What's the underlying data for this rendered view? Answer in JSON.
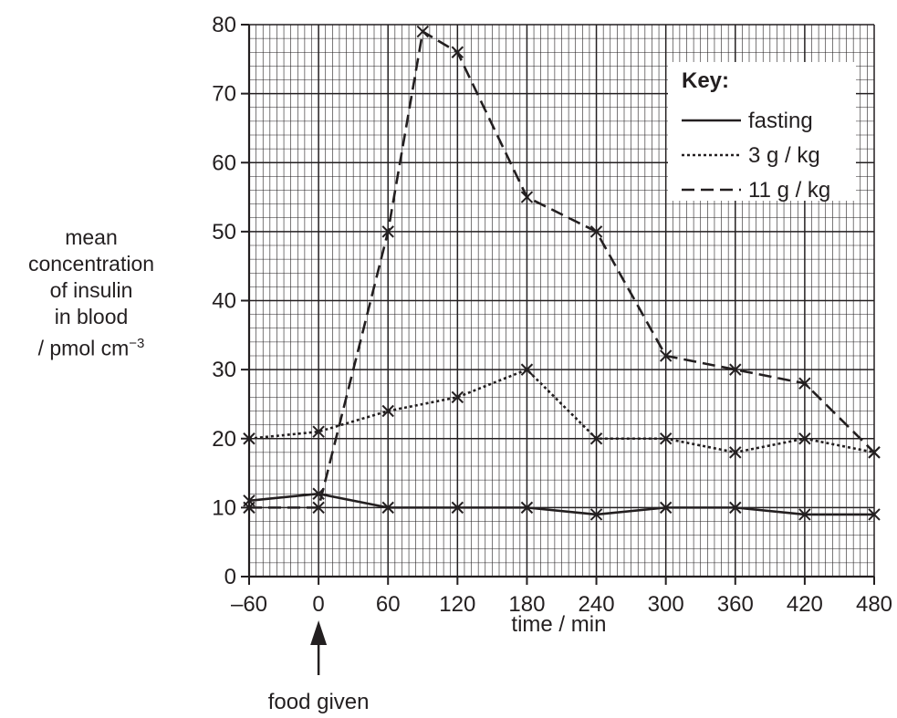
{
  "chart_data": {
    "type": "line",
    "xlabel": "time / min",
    "ylabel": [
      "mean",
      "concentration",
      "of insulin",
      "in blood"
    ],
    "ylabel_unit": "/ pmol cm",
    "ylabel_unit_exp": "−3",
    "xlim": [
      -60,
      480
    ],
    "ylim": [
      0,
      80
    ],
    "x_ticks": [
      -60,
      0,
      60,
      120,
      180,
      240,
      300,
      360,
      420,
      480
    ],
    "x_tick_labels": [
      "–60",
      "0",
      "60",
      "120",
      "180",
      "240",
      "300",
      "360",
      "420",
      "480"
    ],
    "y_ticks": [
      0,
      10,
      20,
      30,
      40,
      50,
      60,
      70,
      80
    ],
    "y_tick_labels": [
      "0",
      "10",
      "20",
      "30",
      "40",
      "50",
      "60",
      "70",
      "80"
    ],
    "grid": true,
    "legend_title": "Key:",
    "legend_position": "top-right",
    "series": [
      {
        "name": "fasting",
        "style": "solid",
        "x": [
          -60,
          0,
          60,
          120,
          180,
          240,
          300,
          360,
          420,
          480
        ],
        "y": [
          11,
          12,
          10,
          10,
          10,
          9,
          10,
          10,
          9,
          9
        ]
      },
      {
        "name": "3 g / kg",
        "style": "dotted",
        "x": [
          -60,
          0,
          60,
          120,
          180,
          240,
          300,
          360,
          420,
          480
        ],
        "y": [
          20,
          21,
          24,
          26,
          30,
          20,
          20,
          18,
          20,
          18
        ]
      },
      {
        "name": "11 g / kg",
        "style": "dashed",
        "x": [
          -60,
          0,
          60,
          90,
          120,
          180,
          240,
          300,
          360,
          420,
          480
        ],
        "y": [
          10,
          10,
          50,
          79,
          76,
          55,
          50,
          32,
          30,
          28,
          18
        ]
      }
    ],
    "annotation": {
      "text": "food given",
      "x": 0
    }
  }
}
